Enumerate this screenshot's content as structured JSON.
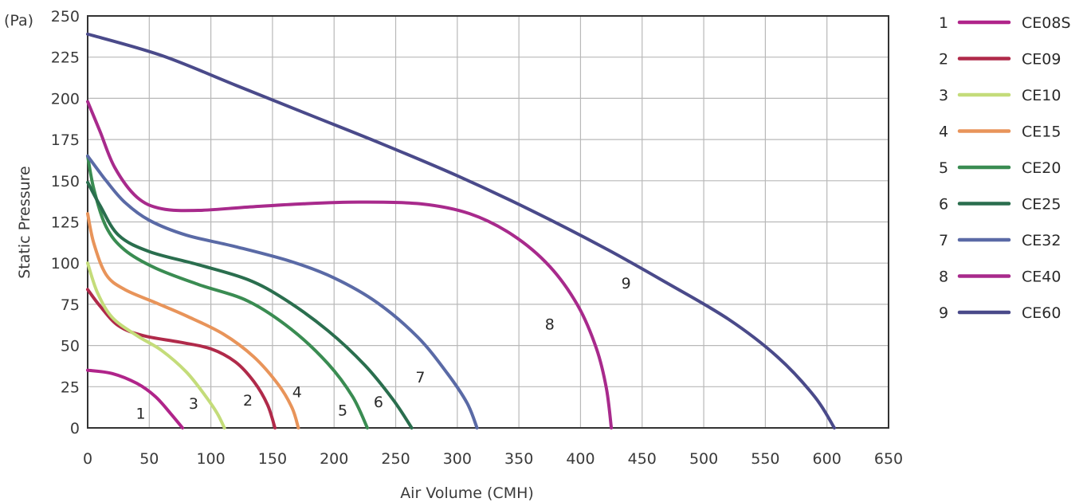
{
  "chart_data": {
    "type": "line",
    "ylabel": "Static Pressure",
    "yunit": "(Pa)",
    "xlabel": "Air Volume (CMH)",
    "xlim": [
      0,
      650
    ],
    "ylim": [
      0,
      250
    ],
    "xticks": [
      "0",
      "50",
      "100",
      "150",
      "200",
      "250",
      "300",
      "350",
      "400",
      "450",
      "500",
      "550",
      "600",
      "650"
    ],
    "yticks": [
      "0",
      "25",
      "50",
      "75",
      "100",
      "125",
      "150",
      "175",
      "200",
      "225",
      "250"
    ],
    "grid": true,
    "legend_position": "right",
    "series": [
      {
        "id": "1",
        "name": "CE08S",
        "color": "#b0248a",
        "points": [
          [
            0,
            35
          ],
          [
            20,
            33
          ],
          [
            40,
            27
          ],
          [
            55,
            19
          ],
          [
            67,
            9
          ],
          [
            77,
            0
          ]
        ]
      },
      {
        "id": "2",
        "name": "CE09",
        "color": "#b02a4a",
        "points": [
          [
            0,
            84
          ],
          [
            10,
            74
          ],
          [
            25,
            62
          ],
          [
            45,
            56
          ],
          [
            75,
            52
          ],
          [
            100,
            48
          ],
          [
            120,
            40
          ],
          [
            135,
            28
          ],
          [
            146,
            14
          ],
          [
            152,
            0
          ]
        ]
      },
      {
        "id": "3",
        "name": "CE10",
        "color": "#c4dc7a",
        "points": [
          [
            0,
            100
          ],
          [
            8,
            82
          ],
          [
            20,
            67
          ],
          [
            40,
            56
          ],
          [
            60,
            47
          ],
          [
            80,
            34
          ],
          [
            95,
            20
          ],
          [
            105,
            9
          ],
          [
            111,
            0
          ]
        ]
      },
      {
        "id": "4",
        "name": "CE15",
        "color": "#e8945a",
        "points": [
          [
            0,
            130
          ],
          [
            5,
            112
          ],
          [
            15,
            93
          ],
          [
            30,
            84
          ],
          [
            55,
            76
          ],
          [
            80,
            68
          ],
          [
            110,
            57
          ],
          [
            135,
            43
          ],
          [
            155,
            26
          ],
          [
            166,
            12
          ],
          [
            171,
            0
          ]
        ]
      },
      {
        "id": "5",
        "name": "CE20",
        "color": "#3a8c52",
        "points": [
          [
            0,
            165
          ],
          [
            5,
            145
          ],
          [
            15,
            122
          ],
          [
            30,
            108
          ],
          [
            55,
            97
          ],
          [
            90,
            87
          ],
          [
            130,
            77
          ],
          [
            165,
            60
          ],
          [
            195,
            39
          ],
          [
            215,
            19
          ],
          [
            227,
            0
          ]
        ]
      },
      {
        "id": "6",
        "name": "CE25",
        "color": "#2a6e4e",
        "points": [
          [
            0,
            149
          ],
          [
            10,
            135
          ],
          [
            25,
            117
          ],
          [
            50,
            107
          ],
          [
            90,
            99
          ],
          [
            130,
            90
          ],
          [
            160,
            78
          ],
          [
            195,
            59
          ],
          [
            225,
            38
          ],
          [
            248,
            17
          ],
          [
            263,
            0
          ]
        ]
      },
      {
        "id": "7",
        "name": "CE32",
        "color": "#5a6aa6",
        "points": [
          [
            0,
            165
          ],
          [
            15,
            150
          ],
          [
            30,
            137
          ],
          [
            50,
            126
          ],
          [
            80,
            117
          ],
          [
            120,
            110
          ],
          [
            165,
            101
          ],
          [
            200,
            91
          ],
          [
            235,
            76
          ],
          [
            268,
            55
          ],
          [
            292,
            33
          ],
          [
            308,
            15
          ],
          [
            316,
            0
          ]
        ]
      },
      {
        "id": "8",
        "name": "CE40",
        "color": "#a82a8c",
        "points": [
          [
            0,
            198
          ],
          [
            10,
            180
          ],
          [
            22,
            158
          ],
          [
            40,
            140
          ],
          [
            60,
            133
          ],
          [
            90,
            132
          ],
          [
            130,
            134
          ],
          [
            175,
            136
          ],
          [
            220,
            137
          ],
          [
            270,
            136
          ],
          [
            310,
            130
          ],
          [
            345,
            117
          ],
          [
            375,
            98
          ],
          [
            398,
            74
          ],
          [
            413,
            48
          ],
          [
            421,
            24
          ],
          [
            425,
            0
          ]
        ]
      },
      {
        "id": "9",
        "name": "CE60",
        "color": "#4a4a8a",
        "points": [
          [
            0,
            239
          ],
          [
            60,
            226
          ],
          [
            120,
            208
          ],
          [
            180,
            190
          ],
          [
            240,
            172
          ],
          [
            300,
            153
          ],
          [
            360,
            132
          ],
          [
            420,
            109
          ],
          [
            470,
            88
          ],
          [
            520,
            66
          ],
          [
            560,
            43
          ],
          [
            590,
            19
          ],
          [
            606,
            0
          ]
        ]
      }
    ],
    "curve_labels": [
      {
        "text": "1",
        "x": 43,
        "y": 9
      },
      {
        "text": "3",
        "x": 86,
        "y": 15
      },
      {
        "text": "2",
        "x": 130,
        "y": 17
      },
      {
        "text": "4",
        "x": 170,
        "y": 22
      },
      {
        "text": "5",
        "x": 207,
        "y": 11
      },
      {
        "text": "6",
        "x": 236,
        "y": 16
      },
      {
        "text": "7",
        "x": 270,
        "y": 31
      },
      {
        "text": "8",
        "x": 375,
        "y": 63
      },
      {
        "text": "9",
        "x": 437,
        "y": 88
      }
    ]
  }
}
